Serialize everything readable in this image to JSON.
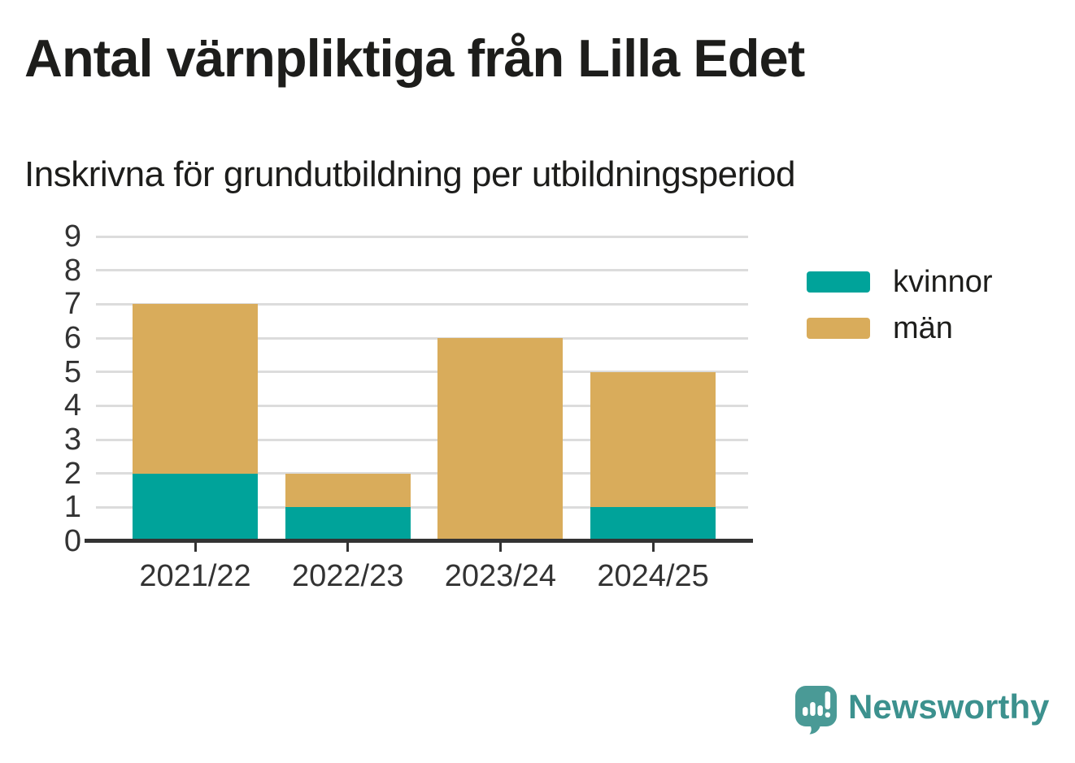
{
  "header": {
    "title": "Antal värnpliktiga från Lilla Edet",
    "subtitle": "Inskrivna för grundutbildning per utbildningsperiod"
  },
  "chart_data": {
    "type": "bar",
    "stacked": true,
    "title": "Antal värnpliktiga från Lilla Edet",
    "subtitle": "Inskrivna för grundutbildning per utbildningsperiod",
    "categories": [
      "2021/22",
      "2022/23",
      "2023/24",
      "2024/25"
    ],
    "series": [
      {
        "name": "kvinnor",
        "color": "#00a39a",
        "values": [
          2,
          1,
          0,
          1
        ]
      },
      {
        "name": "män",
        "color": "#d9ac5b",
        "values": [
          5,
          1,
          6,
          4
        ]
      }
    ],
    "totals": [
      7,
      2,
      6,
      5
    ],
    "xlabel": "",
    "ylabel": "",
    "ylim": [
      0,
      9
    ],
    "yticks": [
      0,
      1,
      2,
      3,
      4,
      5,
      6,
      7,
      8,
      9
    ],
    "grid": "horizontal",
    "legend_position": "right"
  },
  "colors": {
    "kvinnor": "#00a39a",
    "man": "#d9ac5b",
    "gridline": "#dcdcdc",
    "axis": "#333333",
    "text": "#1d1d1b",
    "logo": "#4a9a96",
    "logo_text": "#3c918e"
  },
  "footer": {
    "logo_text": "Newsworthy"
  }
}
